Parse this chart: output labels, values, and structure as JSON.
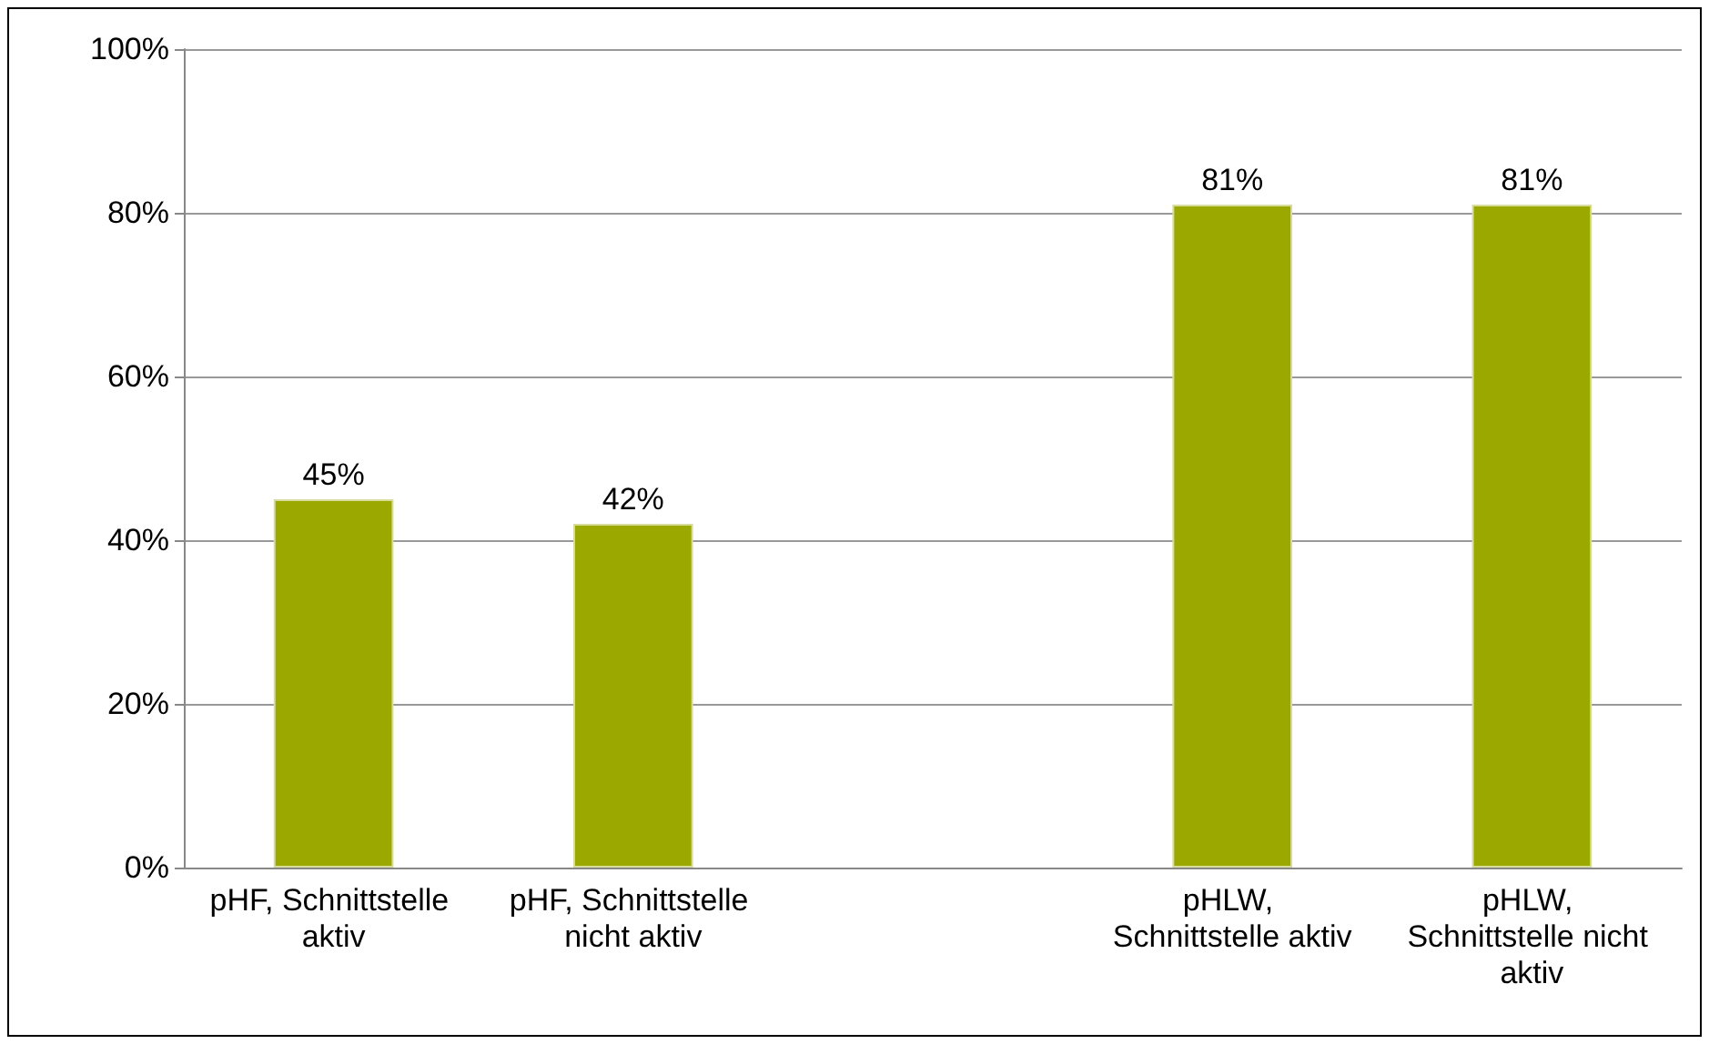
{
  "chart_data": {
    "type": "bar",
    "categories": [
      "pHF, Schnittstelle aktiv",
      "pHF, Schnittstelle nicht aktiv",
      null,
      "pHLW, Schnittstelle aktiv",
      "pHLW, Schnittstelle nicht aktiv"
    ],
    "values": [
      45,
      42,
      null,
      81,
      81
    ],
    "color": "#9aa800",
    "value_labels": [
      "45%",
      "42%",
      null,
      "81%",
      "81%"
    ],
    "ylim": [
      0,
      100
    ],
    "yticks": [
      {
        "value": 0,
        "label": "0%"
      },
      {
        "value": 20,
        "label": "20%"
      },
      {
        "value": 40,
        "label": "40%"
      },
      {
        "value": 60,
        "label": "60%"
      },
      {
        "value": 80,
        "label": "80%"
      },
      {
        "value": 100,
        "label": "100%"
      }
    ],
    "grid": "y"
  }
}
